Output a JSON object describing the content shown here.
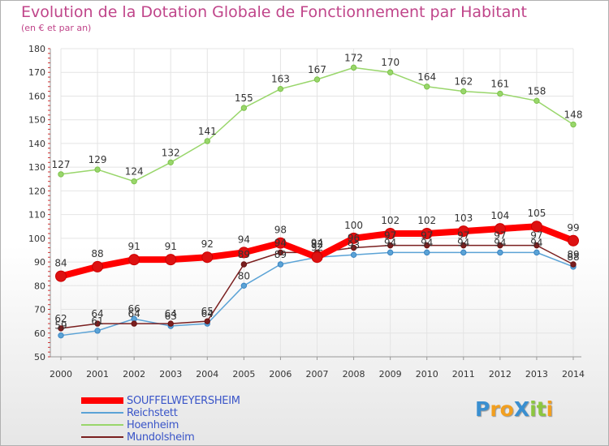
{
  "title": "Evolution de la Dotation Globale de Fonctionnement par Habitant",
  "subtitle": "(en € et par an)",
  "logo": {
    "text": "ProXiti",
    "letters": [
      {
        "ch": "P",
        "color": "#3a8fd0"
      },
      {
        "ch": "r",
        "color": "#f29f1f"
      },
      {
        "ch": "o",
        "color": "#f29f1f"
      },
      {
        "ch": "X",
        "color": "#3a8fd0"
      },
      {
        "ch": "i",
        "color": "#8cc63f"
      },
      {
        "ch": "t",
        "color": "#8cc63f"
      },
      {
        "ch": "i",
        "color": "#f29f1f"
      }
    ]
  },
  "colors": {
    "axis_text": "#333333",
    "grid": "#e4e4e4",
    "axis_line": "#999999",
    "tick_marks": "#cc3333",
    "legend_text": "#3a55c8"
  },
  "chart_data": {
    "type": "line",
    "x": [
      "2000",
      "2001",
      "2002",
      "2003",
      "2004",
      "2005",
      "2006",
      "2007",
      "2008",
      "2009",
      "2010",
      "2011",
      "2012",
      "2013",
      "2014"
    ],
    "ylim": [
      50,
      180
    ],
    "yticks": [
      50,
      60,
      70,
      80,
      90,
      100,
      110,
      120,
      130,
      140,
      150,
      160,
      170,
      180
    ],
    "grid": true,
    "legend_position": "bottom-left",
    "series": [
      {
        "name": "SOUFFELWEYERSHEIM",
        "color": "#ff0000",
        "marker": "#cc0000",
        "width": 8,
        "values": [
          84,
          88,
          91,
          91,
          92,
          94,
          98,
          92,
          100,
          102,
          102,
          103,
          104,
          105,
          99
        ]
      },
      {
        "name": "Reichstett",
        "color": "#5ba3d6",
        "marker": "#3a84c2",
        "width": 1.5,
        "values": [
          59,
          61,
          66,
          63,
          64,
          80,
          89,
          92,
          93,
          94,
          94,
          94,
          94,
          94,
          88
        ]
      },
      {
        "name": "Hoenheim",
        "color": "#99d66b",
        "marker": "#7cc24a",
        "width": 1.5,
        "values": [
          127,
          129,
          124,
          132,
          141,
          155,
          163,
          167,
          172,
          170,
          164,
          162,
          161,
          158,
          148
        ]
      },
      {
        "name": "Mundolsheim",
        "color": "#7a1f1f",
        "marker": "#6b1010",
        "width": 1.5,
        "values": [
          62,
          64,
          64,
          64,
          65,
          89,
          94,
          94,
          96,
          97,
          97,
          97,
          97,
          97,
          89
        ]
      }
    ],
    "labeled_series": [
      "SOUFFELWEYERSHEIM",
      "Reichstett",
      "Hoenheim",
      "Mundolsheim"
    ]
  }
}
